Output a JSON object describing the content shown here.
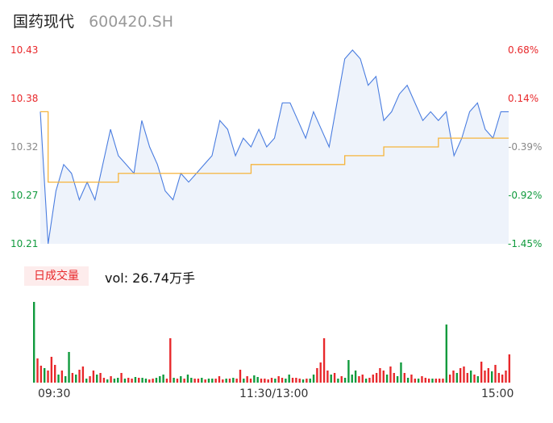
{
  "header": {
    "name": "国药现代",
    "code": "600420.SH"
  },
  "price_axis_labels": [
    "10.43",
    "10.38",
    "10.32",
    "10.27",
    "10.21"
  ],
  "pct_axis_labels": [
    "0.68%",
    "0.14%",
    "-0.39%",
    "-0.92%",
    "-1.45%"
  ],
  "volume": {
    "badge": "日成交量",
    "text": "vol: 26.74万手"
  },
  "time_labels": [
    "09:30",
    "11:30/13:00",
    "15:00"
  ],
  "colors": {
    "price_line": "#4a7de0",
    "avg_line": "#f5b43c",
    "area_fill": "#eef3fb",
    "up": "#e8282b",
    "down": "#0f9a3c"
  },
  "chart_data": [
    {
      "type": "line",
      "ylim": [
        10.21,
        10.43
      ],
      "pct_lim": [
        -1.45,
        0.68
      ],
      "x": [
        0,
        4,
        8,
        12,
        16,
        20,
        24,
        28,
        32,
        36,
        40,
        44,
        48,
        52,
        56,
        60,
        64,
        68,
        72,
        76,
        80,
        84,
        88,
        92,
        96,
        100,
        104,
        108,
        112,
        116,
        120,
        124,
        128,
        132,
        136,
        140,
        144,
        148,
        152,
        156,
        160,
        164,
        168,
        172,
        176,
        180,
        184,
        188,
        192,
        196,
        200,
        204,
        208,
        212,
        216,
        220,
        224,
        228,
        232,
        236,
        240
      ],
      "series": [
        {
          "values": [
            10.36,
            10.21,
            10.27,
            10.3,
            10.29,
            10.26,
            10.28,
            10.26,
            10.3,
            10.34,
            10.31,
            10.3,
            10.29,
            10.35,
            10.32,
            10.3,
            10.27,
            10.26,
            10.29,
            10.28,
            10.29,
            10.3,
            10.31,
            10.35,
            10.34,
            10.31,
            10.33,
            10.32,
            10.34,
            10.32,
            10.33,
            10.37,
            10.37,
            10.35,
            10.33,
            10.36,
            10.34,
            10.32,
            10.37,
            10.42,
            10.43,
            10.42,
            10.39,
            10.4,
            10.35,
            10.36,
            10.38,
            10.39,
            10.37,
            10.35,
            10.36,
            10.35,
            10.36,
            10.31,
            10.33,
            10.36,
            10.37,
            10.34,
            10.33,
            10.36,
            10.36
          ]
        },
        {
          "values": [
            10.36,
            10.28,
            10.28,
            10.28,
            10.28,
            10.28,
            10.28,
            10.28,
            10.28,
            10.28,
            10.29,
            10.29,
            10.29,
            10.29,
            10.29,
            10.29,
            10.29,
            10.29,
            10.29,
            10.29,
            10.29,
            10.29,
            10.29,
            10.29,
            10.29,
            10.29,
            10.29,
            10.3,
            10.3,
            10.3,
            10.3,
            10.3,
            10.3,
            10.3,
            10.3,
            10.3,
            10.3,
            10.3,
            10.3,
            10.31,
            10.31,
            10.31,
            10.31,
            10.31,
            10.32,
            10.32,
            10.32,
            10.32,
            10.32,
            10.32,
            10.32,
            10.33,
            10.33,
            10.33,
            10.33,
            10.33,
            10.33,
            10.33,
            10.33,
            10.33,
            10.33
          ]
        }
      ]
    },
    {
      "type": "bar",
      "values": [
        1.0,
        0.3,
        0.21,
        0.18,
        0.15,
        0.32,
        0.22,
        0.1,
        0.15,
        0.08,
        0.38,
        0.12,
        0.1,
        0.16,
        0.2,
        0.05,
        0.08,
        0.15,
        0.1,
        0.12,
        0.06,
        0.04,
        0.08,
        0.05,
        0.06,
        0.12,
        0.05,
        0.06,
        0.05,
        0.07,
        0.06,
        0.06,
        0.05,
        0.04,
        0.05,
        0.06,
        0.08,
        0.1,
        0.05,
        0.55,
        0.06,
        0.05,
        0.08,
        0.05,
        0.1,
        0.06,
        0.05,
        0.05,
        0.06,
        0.04,
        0.05,
        0.05,
        0.05,
        0.08,
        0.04,
        0.05,
        0.05,
        0.06,
        0.05,
        0.16,
        0.05,
        0.08,
        0.05,
        0.09,
        0.07,
        0.05,
        0.05,
        0.04,
        0.06,
        0.05,
        0.08,
        0.06,
        0.05,
        0.1,
        0.06,
        0.06,
        0.05,
        0.04,
        0.05,
        0.05,
        0.1,
        0.18,
        0.25,
        0.55,
        0.15,
        0.1,
        0.12,
        0.05,
        0.08,
        0.06,
        0.28,
        0.1,
        0.15,
        0.08,
        0.1,
        0.05,
        0.06,
        0.1,
        0.12,
        0.18,
        0.15,
        0.1,
        0.2,
        0.12,
        0.08,
        0.25,
        0.12,
        0.06,
        0.1,
        0.05,
        0.05,
        0.08,
        0.06,
        0.05,
        0.05,
        0.05,
        0.05,
        0.05,
        0.72,
        0.1,
        0.15,
        0.12,
        0.18,
        0.2,
        0.12,
        0.15,
        0.1,
        0.08,
        0.26,
        0.15,
        0.18,
        0.14,
        0.22,
        0.12,
        0.1,
        0.15,
        0.35
      ],
      "colors": [
        "down",
        "up",
        "up",
        "down",
        "up",
        "up",
        "up",
        "down",
        "up",
        "down",
        "down",
        "up",
        "down",
        "up",
        "up",
        "down",
        "up",
        "up",
        "down",
        "up",
        "up",
        "down",
        "up",
        "down",
        "down",
        "up",
        "down",
        "up",
        "up",
        "down",
        "up",
        "down",
        "down",
        "up",
        "up",
        "down",
        "down",
        "down",
        "up",
        "up",
        "down",
        "up",
        "down",
        "up",
        "down",
        "down",
        "up",
        "up",
        "down",
        "up",
        "down",
        "down",
        "up",
        "up",
        "up",
        "down",
        "up",
        "down",
        "up",
        "up",
        "down",
        "up",
        "up",
        "down",
        "down",
        "up",
        "up",
        "up",
        "up",
        "down",
        "up",
        "up",
        "down",
        "down",
        "up",
        "up",
        "up",
        "down",
        "up",
        "down",
        "down",
        "up",
        "up",
        "up",
        "up",
        "down",
        "up",
        "down",
        "up",
        "down",
        "down",
        "down",
        "down",
        "up",
        "up",
        "down",
        "up",
        "up",
        "up",
        "up",
        "up",
        "down",
        "up",
        "up",
        "down",
        "down",
        "up",
        "down",
        "up",
        "up",
        "down",
        "up",
        "up",
        "up",
        "down",
        "up",
        "up",
        "up",
        "down",
        "up",
        "up",
        "down",
        "up",
        "up",
        "up",
        "down",
        "up",
        "down",
        "up",
        "up",
        "up",
        "down",
        "up",
        "up",
        "up",
        "up",
        "up"
      ]
    }
  ]
}
